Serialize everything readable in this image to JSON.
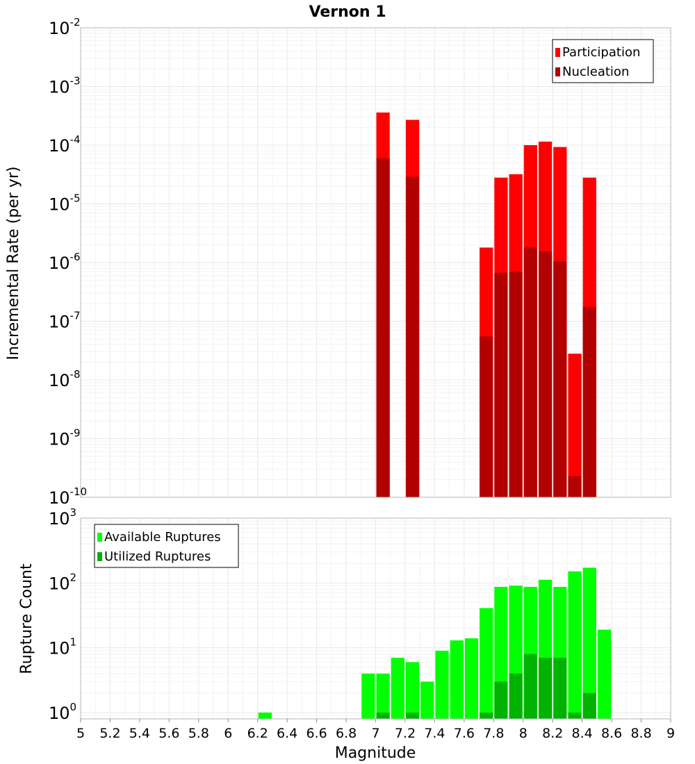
{
  "chart_data": [
    {
      "type": "bar",
      "title": "Vernon 1",
      "xlabel": "Magnitude",
      "ylabel": "Incremental Rate (per yr)",
      "yscale": "log",
      "ylim": [
        1e-10,
        0.01
      ],
      "xlim": [
        5,
        9
      ],
      "bin_width": 0.1,
      "grid": true,
      "legend_position": "top-right",
      "ytick_labels": [
        "10^-10",
        "10^-9",
        "10^-8",
        "10^-7",
        "10^-6",
        "10^-5",
        "10^-4",
        "10^-3",
        "10^-2"
      ],
      "series": [
        {
          "name": "Participation",
          "color": "#ff0000",
          "x": [
            7.05,
            7.25,
            7.75,
            7.85,
            7.95,
            8.05,
            8.15,
            8.25,
            8.35,
            8.45
          ],
          "values": [
            0.00036,
            0.00027,
            1.8e-06,
            2.8e-05,
            3.2e-05,
            0.0001,
            0.000115,
            9.3e-05,
            2.8e-08,
            2.8e-05
          ]
        },
        {
          "name": "Nucleation",
          "color": "#b30000",
          "x": [
            7.05,
            7.25,
            7.75,
            7.85,
            7.95,
            8.05,
            8.15,
            8.25,
            8.35,
            8.45
          ],
          "values": [
            6e-05,
            2.9e-05,
            5.5e-08,
            6.7e-07,
            7e-07,
            1.8e-06,
            1.55e-06,
            1.05e-06,
            2.3e-10,
            1.75e-07
          ]
        }
      ]
    },
    {
      "type": "bar",
      "xlabel": "Magnitude",
      "ylabel": "Rupture Count",
      "yscale": "log",
      "ylim": [
        0.8,
        1000
      ],
      "xlim": [
        5,
        9
      ],
      "bin_width": 0.1,
      "grid": true,
      "legend_position": "top-left",
      "xtick_labels": [
        "5",
        "5.2",
        "5.4",
        "5.6",
        "5.8",
        "6",
        "6.2",
        "6.4",
        "6.6",
        "6.8",
        "7",
        "7.2",
        "7.4",
        "7.6",
        "7.8",
        "8",
        "8.2",
        "8.4",
        "8.6",
        "8.8",
        "9"
      ],
      "ytick_labels": [
        "10^0",
        "10^1",
        "10^2",
        "10^3"
      ],
      "series": [
        {
          "name": "Available Ruptures",
          "color": "#00ff00",
          "x": [
            6.25,
            6.95,
            7.05,
            7.15,
            7.25,
            7.35,
            7.45,
            7.55,
            7.65,
            7.75,
            7.85,
            7.95,
            8.05,
            8.15,
            8.25,
            8.35,
            8.45,
            8.55
          ],
          "values": [
            1,
            4,
            4,
            7,
            6,
            3,
            9,
            13,
            14,
            41,
            87,
            91,
            87,
            112,
            87,
            151,
            172,
            19
          ]
        },
        {
          "name": "Utilized Ruptures",
          "color": "#00b300",
          "x": [
            7.05,
            7.25,
            7.75,
            7.85,
            7.95,
            8.05,
            8.15,
            8.25,
            8.35,
            8.45
          ],
          "values": [
            1,
            1,
            1,
            3,
            4,
            8,
            7,
            7,
            1,
            2
          ]
        }
      ]
    }
  ]
}
